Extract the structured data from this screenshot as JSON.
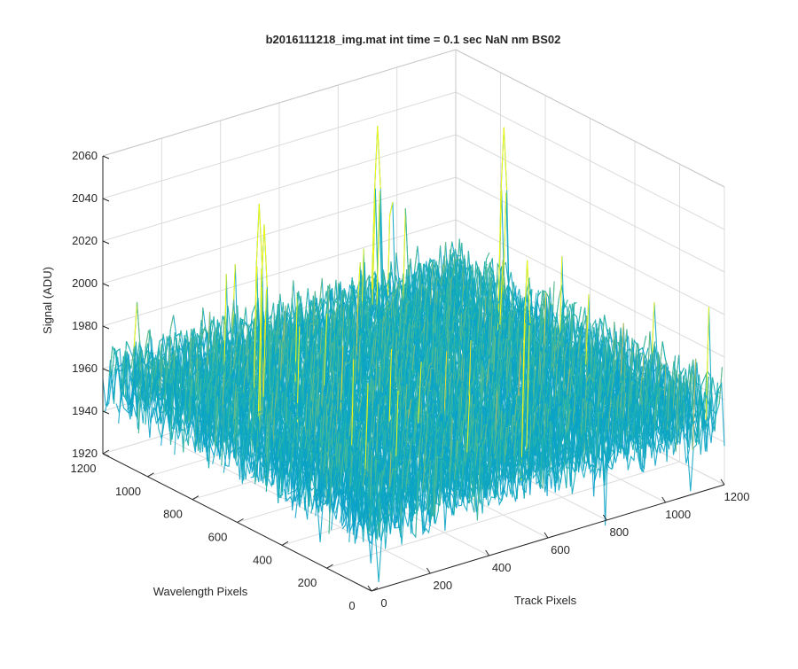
{
  "chart_data": {
    "type": "surface",
    "title": "b2016111218_img.mat int time = 0.1 sec  NaN nm BS02",
    "xlabel": "Track Pixels",
    "ylabel": "Wavelength Pixels",
    "zlabel": "Signal (ADU)",
    "xlim": [
      0,
      1200
    ],
    "ylim": [
      0,
      1200
    ],
    "zlim": [
      1920,
      2060
    ],
    "xticks": [
      "0",
      "200",
      "400",
      "600",
      "800",
      "1000",
      "1200"
    ],
    "yticks": [
      "0",
      "200",
      "400",
      "600",
      "800",
      "1000",
      "1200"
    ],
    "zticks": [
      "1920",
      "1940",
      "1960",
      "1980",
      "2000",
      "2020",
      "2040",
      "2060"
    ],
    "grid": true,
    "colormap": "parula",
    "baseline": 1955,
    "noise_amplitude": 25,
    "peaks": [
      {
        "x": 130,
        "y": 650,
        "z": 2052
      },
      {
        "x": 250,
        "y": 830,
        "z": 2047
      },
      {
        "x": 820,
        "y": 1050,
        "z": 2048
      },
      {
        "x": 1120,
        "y": 880,
        "z": 2044
      },
      {
        "x": 560,
        "y": 40,
        "z": 2050
      },
      {
        "x": 350,
        "y": 20,
        "z": 2000
      },
      {
        "x": 40,
        "y": 1100,
        "z": 1995
      },
      {
        "x": 1190,
        "y": 300,
        "z": 1990
      }
    ],
    "dips": [
      {
        "x": 150,
        "y": 200,
        "z": 1916
      },
      {
        "x": 130,
        "y": 400,
        "z": 1915
      },
      {
        "x": 70,
        "y": 60,
        "z": 1918
      },
      {
        "x": 1100,
        "y": 20,
        "z": 1920
      }
    ]
  }
}
